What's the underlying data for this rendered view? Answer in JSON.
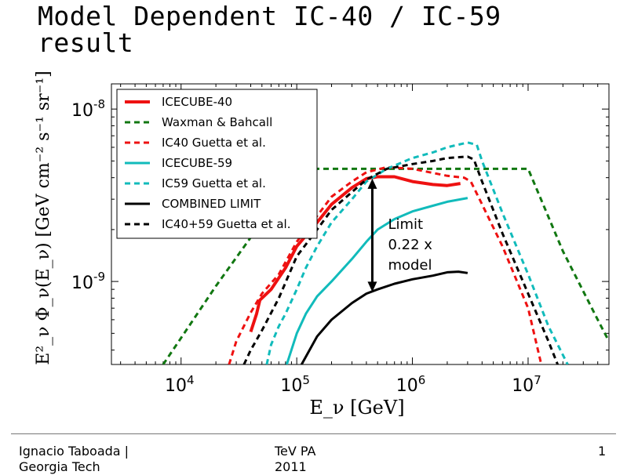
{
  "slide": {
    "title_line1": "Model Dependent IC-40 / IC-59",
    "title_line2": "result"
  },
  "footer": {
    "author": "Ignacio Taboada |\nGeorgia Tech",
    "event": "TeV PA\n2011",
    "page": "1"
  },
  "chart_data": {
    "type": "line",
    "xlabel": "E_ν  [GeV]",
    "ylabel": "E²_ν  Φ_ν(E_ν)  [GeV cm⁻² s⁻¹ sr⁻¹]",
    "xscale": "log",
    "yscale": "log",
    "xlim": [
      2500,
      50000000
    ],
    "ylim": [
      3.3e-10,
      1.4e-08
    ],
    "x_ticks": [
      {
        "value": 10000,
        "base": "10",
        "exp": "4"
      },
      {
        "value": 100000,
        "base": "10",
        "exp": "5"
      },
      {
        "value": 1000000,
        "base": "10",
        "exp": "6"
      },
      {
        "value": 10000000,
        "base": "10",
        "exp": "7"
      }
    ],
    "y_ticks": [
      {
        "value": 1e-09,
        "base": "10",
        "exp": "-9"
      },
      {
        "value": 1e-08,
        "base": "10",
        "exp": "-8"
      }
    ],
    "legend_position": "top-left",
    "series": [
      {
        "name": "ICECUBE-40",
        "color": "#ee1111",
        "dash": "solid",
        "width": 4,
        "x": [
          40000,
          45000,
          48000,
          60000,
          80000,
          100000,
          150000,
          200000,
          300000,
          400000,
          500000,
          700000,
          1000000,
          1500000,
          2000000,
          2600000
        ],
        "y": [
          5.1e-10,
          6.5e-10,
          7.8e-10,
          9e-10,
          1.2e-09,
          1.6e-09,
          2.2e-09,
          2.8e-09,
          3.5e-09,
          3.95e-09,
          4.05e-09,
          4.05e-09,
          3.8e-09,
          3.65e-09,
          3.6e-09,
          3.7e-09
        ]
      },
      {
        "name": "Waxman & Bahcall",
        "color": "#117711",
        "dash": "dashed",
        "width": 3,
        "x": [
          7000,
          10000,
          20000,
          40000,
          100000,
          200000,
          1000000,
          5000000,
          10000000,
          20000000,
          40000000,
          50000000
        ],
        "y": [
          3.3e-10,
          4.7e-10,
          9.4e-10,
          1.8e-09,
          4.5e-09,
          4.5e-09,
          4.5e-09,
          4.5e-09,
          4.5e-09,
          1.5e-09,
          6e-10,
          4.5e-10
        ]
      },
      {
        "name": "IC40 Guetta et al.",
        "color": "#ee1111",
        "dash": "dashed",
        "width": 3,
        "x": [
          26000,
          30000,
          40000,
          50000,
          70000,
          100000,
          150000,
          200000,
          300000,
          400000,
          600000,
          1000000,
          2000000,
          2800000,
          3200000,
          4000000,
          6000000,
          10000000,
          13000000
        ],
        "y": [
          3.3e-10,
          4.5e-10,
          6.6e-10,
          8.5e-10,
          1.1e-09,
          1.7e-09,
          2.4e-09,
          3.1e-09,
          3.8e-09,
          4.3e-09,
          4.6e-09,
          4.5e-09,
          4.1e-09,
          4e-09,
          3.8e-09,
          2.8e-09,
          1.6e-09,
          7e-10,
          3.3e-10
        ]
      },
      {
        "name": "ICECUBE-59",
        "color": "#11bbbb",
        "dash": "solid",
        "width": 3,
        "x": [
          82000,
          100000,
          120000,
          150000,
          200000,
          300000,
          400000,
          500000,
          700000,
          1000000,
          1500000,
          2000000,
          3000000
        ],
        "y": [
          3.3e-10,
          5e-10,
          6.5e-10,
          8.2e-10,
          1e-09,
          1.35e-09,
          1.7e-09,
          2e-09,
          2.3e-09,
          2.55e-09,
          2.75e-09,
          2.9e-09,
          3.05e-09
        ]
      },
      {
        "name": "IC59 Guetta et al.",
        "color": "#11bbbb",
        "dash": "dashed",
        "width": 3,
        "x": [
          55000,
          60000,
          70000,
          80000,
          100000,
          120000,
          150000,
          200000,
          300000,
          400000,
          600000,
          1000000,
          1500000,
          2000000,
          3000000,
          3600000,
          4000000,
          6000000,
          10000000,
          15000000,
          22000000
        ],
        "y": [
          3.3e-10,
          4.3e-10,
          5.5e-10,
          6.5e-10,
          9e-10,
          1.2e-09,
          1.6e-09,
          2.2e-09,
          3e-09,
          3.8e-09,
          4.5e-09,
          5.2e-09,
          5.6e-09,
          6e-09,
          6.4e-09,
          6.2e-09,
          5e-09,
          2.5e-09,
          1.1e-09,
          5.5e-10,
          3.3e-10
        ]
      },
      {
        "name": "COMBINED LIMIT",
        "color": "#000000",
        "dash": "solid",
        "width": 3,
        "x": [
          110000,
          150000,
          200000,
          300000,
          400000,
          500000,
          700000,
          1000000,
          1500000,
          2000000,
          2500000,
          3000000
        ],
        "y": [
          3.3e-10,
          4.8e-10,
          6e-10,
          7.5e-10,
          8.5e-10,
          9e-10,
          9.7e-10,
          1.03e-09,
          1.08e-09,
          1.13e-09,
          1.14e-09,
          1.12e-09
        ]
      },
      {
        "name": "IC40+59 Guetta et al.",
        "color": "#000000",
        "dash": "dashed",
        "width": 3,
        "x": [
          35000,
          40000,
          50000,
          70000,
          100000,
          150000,
          200000,
          300000,
          400000,
          600000,
          1000000,
          1500000,
          2000000,
          3000000,
          3400000,
          4000000,
          6000000,
          10000000,
          15000000,
          18000000
        ],
        "y": [
          3.3e-10,
          4e-10,
          5.2e-10,
          8e-10,
          1.4e-09,
          2e-09,
          2.6e-09,
          3.3e-09,
          3.9e-09,
          4.5e-09,
          4.8e-09,
          5e-09,
          5.2e-09,
          5.3e-09,
          5.1e-09,
          3.8e-09,
          1.9e-09,
          8.5e-10,
          4.5e-10,
          3.3e-10
        ]
      }
    ],
    "annotation": {
      "text_lines": [
        "Limit",
        "0.22 x",
        "model"
      ],
      "arrow_x": 450000,
      "arrow_y_top": 3.95e-09,
      "arrow_y_bottom": 8.7e-10
    }
  }
}
